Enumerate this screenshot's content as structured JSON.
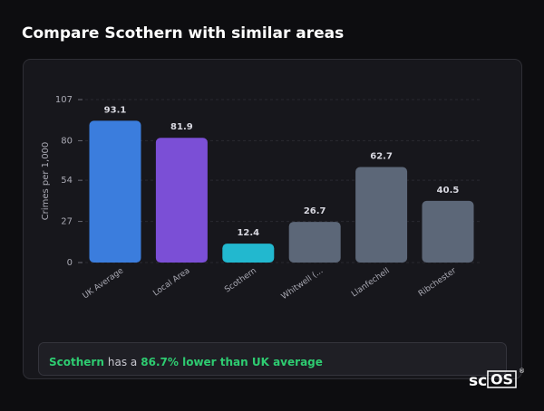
{
  "heading": "Compare Scothern with similar areas",
  "chart_data": {
    "type": "bar",
    "y_label": "Crimes per 1,000",
    "categories": [
      "UK Average",
      "Local Area",
      "Scothern",
      "Whitwell (...",
      "Llanfechell",
      "Ribchester"
    ],
    "values": [
      93.1,
      81.9,
      12.4,
      26.7,
      62.7,
      40.5
    ],
    "colors": [
      "#3b7ddd",
      "#7b4fd6",
      "#22b8cf",
      "#5c6778",
      "#5c6778",
      "#5c6778"
    ],
    "ylim": [
      0,
      107
    ],
    "yticks": [
      0,
      27,
      54,
      80,
      107
    ],
    "grid": true
  },
  "footer": {
    "area": "Scothern",
    "text": "has a",
    "highlight": "86.7% lower than UK average"
  },
  "logo": {
    "prefix": "sc",
    "boxed": "OS",
    "mark": "®"
  }
}
